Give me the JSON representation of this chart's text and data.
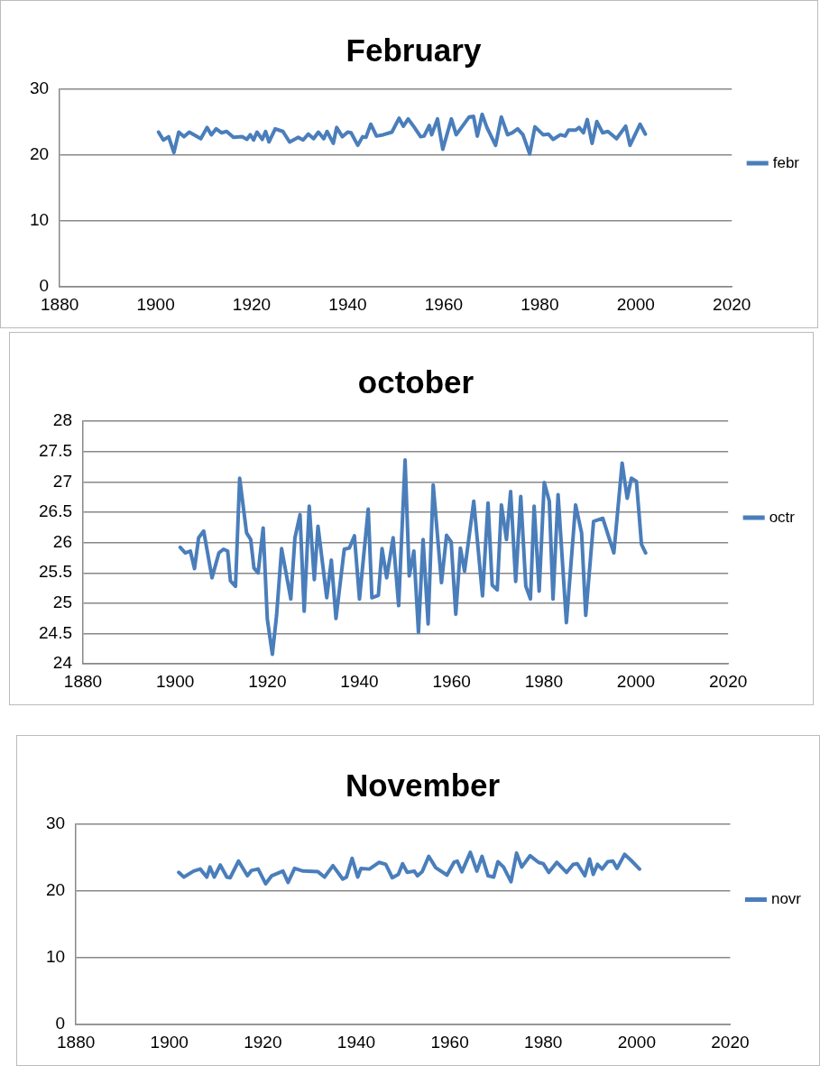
{
  "chart_data": [
    {
      "type": "line",
      "title": "February",
      "xlim": [
        1880,
        2020
      ],
      "xticks": [
        1880,
        1900,
        1920,
        1940,
        1960,
        1980,
        2000,
        2020
      ],
      "ylim": [
        0,
        30
      ],
      "yticks": [
        0,
        10,
        20,
        30
      ],
      "grid": "y",
      "legend": "right",
      "marker": "none",
      "line_style": "solid",
      "series": [
        {
          "name": "febr",
          "color": "#4a7ebb",
          "x": [
            1900.6,
            1901.6,
            1902.7,
            1903.8,
            1904.8,
            1905.9,
            1907.0,
            1909.4,
            1910.7,
            1911.6,
            1912.6,
            1913.7,
            1914.8,
            1916.2,
            1918.0,
            1919.0,
            1919.7,
            1920.4,
            1921.1,
            1922.2,
            1922.9,
            1923.6,
            1924.9,
            1926.5,
            1927.9,
            1929.7,
            1930.7,
            1931.8,
            1932.9,
            1933.9,
            1935.0,
            1935.7,
            1937.0,
            1937.7,
            1938.9,
            1940.0,
            1940.7,
            1942.1,
            1943.1,
            1943.8,
            1944.8,
            1946.0,
            1947.4,
            1949.2,
            1950.7,
            1951.6,
            1952.6,
            1953.8,
            1955.2,
            1955.9,
            1957.0,
            1957.5,
            1958.7,
            1959.8,
            1961.6,
            1962.6,
            1963.7,
            1965.3,
            1966.2,
            1967.0,
            1968.0,
            1969.0,
            1970.8,
            1972.0,
            1973.3,
            1974.3,
            1975.4,
            1976.5,
            1977.9,
            1979.0,
            1980.7,
            1981.8,
            1982.8,
            1984.3,
            1985.3,
            1986.0,
            1987.5,
            1988.2,
            1989.1,
            1989.9,
            1990.9,
            1991.9,
            1993.1,
            1994.2,
            1996.0,
            1997.9,
            1998.8,
            2000.9,
            2002.0
          ],
          "values": [
            23.5,
            22.3,
            22.8,
            20.4,
            23.5,
            22.8,
            23.5,
            22.5,
            24.2,
            23.1,
            24.0,
            23.4,
            23.6,
            22.7,
            22.8,
            22.4,
            23.1,
            22.3,
            23.5,
            22.4,
            23.6,
            22.0,
            24.0,
            23.6,
            22.0,
            22.7,
            22.3,
            23.2,
            22.5,
            23.5,
            22.5,
            23.6,
            21.8,
            24.2,
            22.8,
            23.5,
            23.4,
            21.5,
            22.8,
            22.7,
            24.7,
            22.9,
            23.1,
            23.5,
            25.6,
            24.4,
            25.5,
            24.3,
            22.8,
            22.9,
            24.5,
            23.1,
            25.5,
            20.9,
            25.5,
            23.1,
            24.2,
            25.8,
            25.9,
            22.9,
            26.2,
            24.2,
            21.5,
            25.8,
            23.1,
            23.4,
            24.0,
            23.1,
            20.2,
            24.3,
            23.1,
            23.2,
            22.4,
            23.1,
            22.9,
            23.8,
            23.8,
            24.2,
            23.4,
            25.4,
            21.8,
            25.1,
            23.4,
            23.6,
            22.5,
            24.4,
            21.5,
            24.7,
            23.2
          ]
        }
      ]
    },
    {
      "type": "line",
      "title": "october",
      "xlim": [
        1880,
        2020
      ],
      "xticks": [
        1880,
        1900,
        1920,
        1940,
        1960,
        1980,
        2000,
        2020
      ],
      "ylim": [
        24,
        28
      ],
      "yticks": [
        24,
        24.5,
        25,
        25.5,
        26,
        26.5,
        27,
        27.5,
        28
      ],
      "grid": "y",
      "legend": "right",
      "marker": "none",
      "line_style": "solid",
      "series": [
        {
          "name": "octr",
          "color": "#4a7ebb",
          "x": [
            1901.1,
            1902.2,
            1903.3,
            1904.2,
            1905.1,
            1906.2,
            1908.0,
            1909.5,
            1910.5,
            1911.4,
            1912.0,
            1913.1,
            1914.0,
            1915.5,
            1916.4,
            1917.1,
            1918.0,
            1919.1,
            1920.0,
            1921.1,
            1922.0,
            1923.1,
            1925.1,
            1926.0,
            1927.1,
            1928.0,
            1929.1,
            1930.2,
            1931.0,
            1932.9,
            1933.9,
            1934.9,
            1936.7,
            1937.8,
            1938.9,
            1940.0,
            1941.9,
            1942.7,
            1944.1,
            1944.9,
            1945.9,
            1947.3,
            1948.5,
            1949.9,
            1950.8,
            1951.8,
            1952.8,
            1953.8,
            1954.9,
            1956.0,
            1957.8,
            1958.9,
            1959.9,
            1960.9,
            1961.9,
            1962.8,
            1964.8,
            1966.7,
            1967.9,
            1968.8,
            1969.9,
            1970.8,
            1971.9,
            1972.8,
            1973.9,
            1975.0,
            1976.1,
            1977.1,
            1977.9,
            1979.0,
            1980.1,
            1981.2,
            1982.0,
            1983.1,
            1984.9,
            1986.9,
            1988.2,
            1989.1,
            1990.8,
            1992.8,
            1995.2,
            1997.0,
            1998.1,
            1999.0,
            2000.1,
            2001.2,
            2002.1
          ],
          "values": [
            25.92,
            25.83,
            25.86,
            25.57,
            26.08,
            26.19,
            25.42,
            25.83,
            25.89,
            25.86,
            25.37,
            25.28,
            27.06,
            26.16,
            26.05,
            25.58,
            25.5,
            26.24,
            24.74,
            24.16,
            24.79,
            25.9,
            25.07,
            26.08,
            26.46,
            24.87,
            26.6,
            25.39,
            26.27,
            25.09,
            25.71,
            24.75,
            25.89,
            25.91,
            26.11,
            25.07,
            26.55,
            25.09,
            25.13,
            25.9,
            25.42,
            26.08,
            24.96,
            27.36,
            25.45,
            25.86,
            24.52,
            26.05,
            24.66,
            26.95,
            25.34,
            26.12,
            26.01,
            24.82,
            25.91,
            25.53,
            26.68,
            25.12,
            26.65,
            25.3,
            25.22,
            26.62,
            26.05,
            26.84,
            25.36,
            26.76,
            25.28,
            25.07,
            26.6,
            25.2,
            26.99,
            26.68,
            25.07,
            26.79,
            24.68,
            26.62,
            26.16,
            24.8,
            26.35,
            26.4,
            25.83,
            27.31,
            26.73,
            27.06,
            27.01,
            25.97,
            25.83
          ]
        }
      ]
    },
    {
      "type": "line",
      "title": "November",
      "xlim": [
        1880,
        2020
      ],
      "xticks": [
        1880,
        1900,
        1920,
        1940,
        1960,
        1980,
        2000,
        2020
      ],
      "ylim": [
        0,
        30
      ],
      "yticks": [
        0,
        10,
        20,
        30
      ],
      "grid": "y",
      "legend": "right",
      "marker": "none",
      "line_style": "solid",
      "series": [
        {
          "name": "novr",
          "color": "#4a7ebb",
          "x": [
            1902.0,
            1903.1,
            1905.2,
            1906.6,
            1908.0,
            1908.7,
            1909.6,
            1910.9,
            1912.3,
            1913.0,
            1914.8,
            1916.7,
            1917.6,
            1919.0,
            1920.6,
            1921.9,
            1924.3,
            1925.4,
            1926.8,
            1928.6,
            1931.8,
            1933.2,
            1935.0,
            1937.1,
            1937.9,
            1939.1,
            1940.3,
            1941.0,
            1942.8,
            1944.9,
            1946.3,
            1947.7,
            1949.0,
            1949.9,
            1950.9,
            1952.4,
            1953.1,
            1954.1,
            1955.5,
            1957.0,
            1959.4,
            1960.9,
            1961.6,
            1962.6,
            1964.4,
            1965.8,
            1966.9,
            1968.2,
            1969.4,
            1970.3,
            1971.5,
            1973.1,
            1974.3,
            1975.4,
            1977.2,
            1979.0,
            1980.0,
            1981.2,
            1982.9,
            1985.0,
            1986.4,
            1987.3,
            1988.9,
            1989.9,
            1990.7,
            1991.6,
            1992.6,
            1993.8,
            1994.9,
            1995.8,
            1997.4,
            1998.8,
            2000.6
          ],
          "values": [
            22.8,
            22.1,
            23.0,
            23.3,
            22.1,
            23.6,
            22.1,
            23.9,
            22.1,
            22.0,
            24.5,
            22.3,
            23.1,
            23.3,
            21.1,
            22.3,
            23.0,
            21.3,
            23.4,
            23.0,
            22.9,
            22.1,
            23.8,
            21.8,
            22.1,
            24.9,
            22.1,
            23.4,
            23.3,
            24.3,
            24.0,
            22.0,
            22.5,
            24.1,
            22.8,
            23.0,
            22.3,
            22.9,
            25.2,
            23.5,
            22.4,
            24.3,
            24.5,
            22.9,
            25.8,
            23.0,
            25.2,
            22.3,
            22.1,
            24.4,
            23.6,
            21.4,
            25.7,
            23.6,
            25.3,
            24.3,
            24.1,
            22.8,
            24.3,
            22.8,
            24.0,
            24.1,
            22.3,
            24.8,
            22.5,
            24.0,
            23.3,
            24.4,
            24.5,
            23.4,
            25.5,
            24.6,
            23.3
          ]
        }
      ]
    }
  ]
}
